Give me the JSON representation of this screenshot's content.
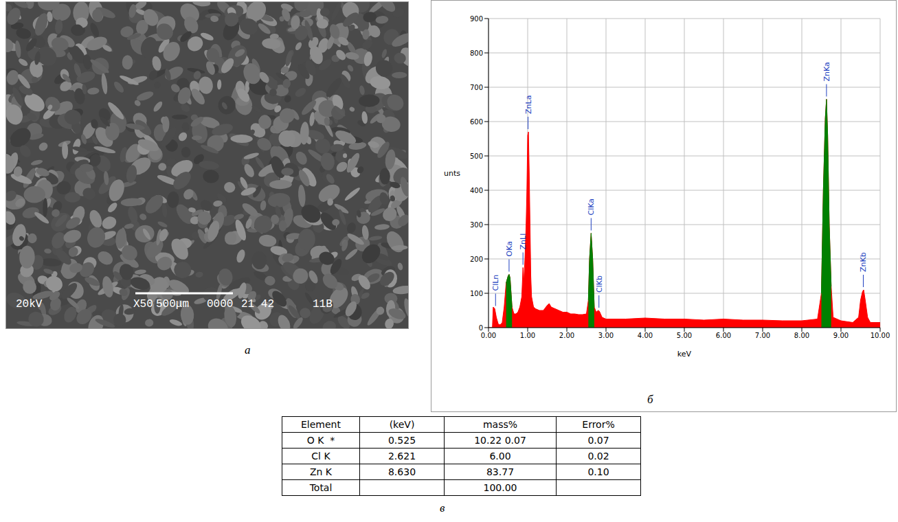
{
  "panel_labels": [
    "а",
    "б",
    "в"
  ],
  "image": {
    "caption": [
      "20kV",
      "X50",
      "500μm",
      "0000",
      "21 42",
      "11B"
    ]
  },
  "chart_data": {
    "type": "area",
    "x_label": "keV",
    "y_label": "unts",
    "xlim": [
      0,
      10
    ],
    "ylim": [
      0,
      900
    ],
    "xticks": [
      {
        "value": 0,
        "label": "0.00"
      },
      {
        "value": 1,
        "label": "1.00"
      },
      {
        "value": 2,
        "label": "2.00"
      },
      {
        "value": 3,
        "label": "3.00"
      },
      {
        "value": 4,
        "label": "4.00"
      },
      {
        "value": 5,
        "label": "5.00"
      },
      {
        "value": 6,
        "label": "6.00"
      },
      {
        "value": 7,
        "label": "7.00"
      },
      {
        "value": 8,
        "label": "8.00"
      },
      {
        "value": 9,
        "label": "9.00"
      },
      {
        "value": 10,
        "label": "10.00"
      }
    ],
    "yticks": [
      0,
      100,
      200,
      300,
      400,
      500,
      600,
      700,
      800,
      900
    ],
    "grid": true,
    "series": [
      {
        "color": "#ff0000",
        "x": [
          0.0,
          0.1,
          0.12,
          0.16,
          0.2,
          0.25,
          0.3,
          0.35,
          0.4,
          0.45,
          0.5,
          0.525,
          0.55,
          0.6,
          0.65,
          0.7,
          0.75,
          0.8,
          0.85,
          0.88,
          0.9,
          0.93,
          0.96,
          0.98,
          1.0,
          1.02,
          1.04,
          1.06,
          1.08,
          1.1,
          1.15,
          1.2,
          1.3,
          1.4,
          1.5,
          1.55,
          1.6,
          1.7,
          1.8,
          1.9,
          2.0,
          2.1,
          2.2,
          2.3,
          2.4,
          2.5,
          2.55,
          2.58,
          2.62,
          2.66,
          2.7,
          2.75,
          2.8,
          2.83,
          2.9,
          3.0,
          3.5,
          4.0,
          4.5,
          5.0,
          5.5,
          6.0,
          6.5,
          7.0,
          7.5,
          8.0,
          8.4,
          8.5,
          8.55,
          8.6,
          8.63,
          8.66,
          8.7,
          8.75,
          8.8,
          9.0,
          9.3,
          9.45,
          9.5,
          9.55,
          9.58,
          9.62,
          9.68,
          9.75,
          10.0
        ],
        "values": [
          0,
          0,
          60,
          55,
          30,
          10,
          8,
          15,
          60,
          130,
          150,
          155,
          145,
          60,
          40,
          40,
          45,
          60,
          90,
          175,
          130,
          200,
          300,
          400,
          560,
          570,
          450,
          300,
          150,
          90,
          60,
          55,
          50,
          50,
          65,
          70,
          60,
          55,
          50,
          45,
          45,
          40,
          40,
          38,
          38,
          40,
          80,
          200,
          275,
          200,
          60,
          45,
          50,
          48,
          30,
          25,
          25,
          28,
          25,
          25,
          22,
          25,
          22,
          22,
          20,
          20,
          25,
          100,
          400,
          610,
          665,
          560,
          300,
          120,
          30,
          20,
          15,
          30,
          80,
          105,
          110,
          80,
          30,
          15,
          15
        ]
      },
      {
        "color": "#008000",
        "x": [
          0.45,
          0.5,
          0.525,
          0.55,
          0.6
        ],
        "values": [
          130,
          150,
          155,
          145,
          60
        ]
      },
      {
        "color": "#008000",
        "x": [
          2.55,
          2.58,
          2.62,
          2.66,
          2.7
        ],
        "values": [
          80,
          200,
          275,
          200,
          60
        ]
      },
      {
        "color": "#008000",
        "x": [
          8.5,
          8.55,
          8.6,
          8.63,
          8.66,
          8.7,
          8.75
        ],
        "values": [
          100,
          400,
          610,
          665,
          560,
          300,
          120
        ]
      }
    ],
    "annotations": [
      {
        "text": "ClLn",
        "x": 0.18
      },
      {
        "text": "OKa",
        "x": 0.525
      },
      {
        "text": "ZnLl",
        "x": 0.88
      },
      {
        "text": "ZnLa",
        "x": 1.01
      },
      {
        "text": "ClKa",
        "x": 2.62
      },
      {
        "text": "ClKb",
        "x": 2.82
      },
      {
        "text": "ZnKa",
        "x": 8.63
      },
      {
        "text": "ZnKb",
        "x": 9.57
      }
    ]
  },
  "table": {
    "header": [
      "Element",
      "(keV)",
      "mass%",
      "Error%"
    ],
    "rows": [
      [
        "O K  *",
        "0.525",
        "10.22 0.07",
        "0.07"
      ],
      [
        "Cl K",
        "2.621",
        "6.00",
        "0.02"
      ],
      [
        "Zn K",
        "8.630",
        "83.77",
        "0.10"
      ],
      [
        "Total",
        null,
        "100.00",
        null
      ]
    ]
  }
}
